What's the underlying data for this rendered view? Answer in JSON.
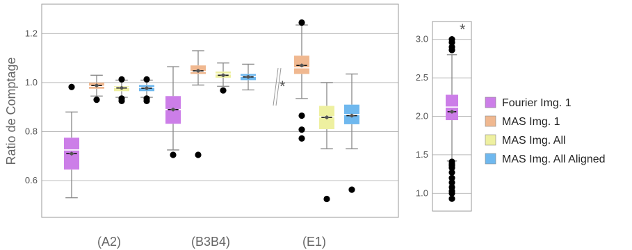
{
  "chart_data": [
    {
      "type": "box",
      "ylabel": "Ratio de Comptage",
      "ylim": [
        0.45,
        1.32
      ],
      "yticks": [
        "0.6",
        "0.8",
        "1.0",
        "1.2"
      ],
      "categories": [
        "(A2)",
        "(B3B4)",
        "(E1)"
      ],
      "break_marker": "*",
      "series": [
        {
          "name": "Fourier Img. 1",
          "color": "#cc7ee8",
          "boxes": [
            {
              "category": "(A2)",
              "min": 0.53,
              "q1": 0.645,
              "median": 0.725,
              "mean": 0.71,
              "q3": 0.775,
              "max": 0.88,
              "outliers": [
                0.982
              ]
            },
            {
              "category": "(B3B4)",
              "min": 0.725,
              "q1": 0.832,
              "median": 0.89,
              "mean": 0.89,
              "q3": 0.945,
              "max": 1.065,
              "outliers": [
                0.705
              ]
            },
            {
              "category": "(E1)",
              "min": null,
              "q1": null,
              "median": null,
              "mean": null,
              "q3": null,
              "max": null,
              "outliers": []
            }
          ]
        },
        {
          "name": "MAS Img. 1",
          "color": "#f0b890",
          "boxes": [
            {
              "category": "(A2)",
              "min": 0.945,
              "q1": 0.975,
              "median": 0.985,
              "mean": 0.988,
              "q3": 1.0,
              "max": 1.03,
              "outliers": [
                0.93
              ]
            },
            {
              "category": "(B3B4)",
              "min": 0.99,
              "q1": 1.035,
              "median": 1.045,
              "mean": 1.048,
              "q3": 1.07,
              "max": 1.13,
              "outliers": [
                0.705
              ]
            },
            {
              "category": "(E1)",
              "min": 0.935,
              "q1": 1.035,
              "median": 1.06,
              "mean": 1.07,
              "q3": 1.11,
              "max": 1.235,
              "outliers": [
                1.245,
                0.865,
                0.808,
                0.772
              ]
            }
          ]
        },
        {
          "name": "MAS Img. All",
          "color": "#eef0a0",
          "boxes": [
            {
              "category": "(A2)",
              "min": 0.94,
              "q1": 0.965,
              "median": 0.98,
              "mean": 0.978,
              "q3": 0.985,
              "max": 1.01,
              "outliers": [
                1.013,
                0.935,
                0.925
              ]
            },
            {
              "category": "(B3B4)",
              "min": 0.985,
              "q1": 1.02,
              "median": 1.035,
              "mean": 1.03,
              "q3": 1.045,
              "max": 1.08,
              "outliers": [
                0.968
              ]
            },
            {
              "category": "(E1)",
              "min": 0.73,
              "q1": 0.81,
              "median": 0.86,
              "mean": 0.858,
              "q3": 0.905,
              "max": 1.0,
              "outliers": [
                0.525
              ]
            }
          ]
        },
        {
          "name": "MAS Img. All Aligned",
          "color": "#6fb8ee",
          "boxes": [
            {
              "category": "(A2)",
              "min": 0.94,
              "q1": 0.965,
              "median": 0.98,
              "mean": 0.977,
              "q3": 0.99,
              "max": 1.01,
              "outliers": [
                1.013,
                0.935,
                0.925
              ]
            },
            {
              "category": "(B3B4)",
              "min": 0.97,
              "q1": 1.01,
              "median": 1.025,
              "mean": 1.023,
              "q3": 1.035,
              "max": 1.075,
              "outliers": []
            },
            {
              "category": "(E1)",
              "min": 0.73,
              "q1": 0.83,
              "median": 0.87,
              "mean": 0.865,
              "q3": 0.91,
              "max": 1.035,
              "outliers": [
                0.563
              ]
            }
          ]
        }
      ]
    },
    {
      "type": "box",
      "ylim": [
        0.85,
        3.15
      ],
      "yticks": [
        "1.0",
        "1.5",
        "2.0",
        "2.5",
        "3.0"
      ],
      "marker": "*",
      "series": [
        {
          "name": "Fourier Img. 1",
          "color": "#cc7ee8",
          "boxes": [
            {
              "category": "(E1)",
              "min": 1.42,
              "q1": 1.95,
              "median": 2.12,
              "mean": 2.06,
              "q3": 2.28,
              "max": 2.8,
              "outliers": [
                3.0,
                2.96,
                2.9,
                2.86,
                1.41,
                1.38,
                1.36,
                1.33,
                1.27,
                1.2,
                1.14,
                1.08,
                1.03,
                1.0,
                0.93
              ]
            }
          ]
        }
      ]
    }
  ],
  "legend": [
    {
      "label": "Fourier Img. 1",
      "color": "#cc7ee8"
    },
    {
      "label": "MAS Img. 1",
      "color": "#f0b890"
    },
    {
      "label": "MAS Img. All",
      "color": "#eef0a0"
    },
    {
      "label": "MAS Img. All Aligned",
      "color": "#6fb8ee"
    }
  ]
}
